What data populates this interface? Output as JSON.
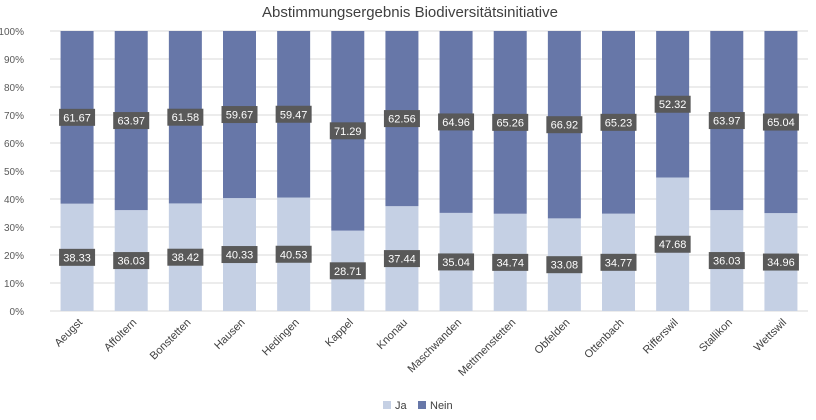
{
  "chart_data": {
    "type": "bar",
    "stacked": "100%",
    "title": "Abstimmungsergebnis Biodiversitätsinitiative",
    "categories": [
      "Aeugst",
      "Affoltern",
      "Bonstetten",
      "Hausen",
      "Hedingen",
      "Kappel",
      "Knonau",
      "Maschwanden",
      "Mettmenstetten",
      "Obfelden",
      "Ottenbach",
      "Rifferswil",
      "Stallikon",
      "Wettswil"
    ],
    "series": [
      {
        "name": "Ja",
        "color": "#c5d0e4",
        "values": [
          38.33,
          36.03,
          38.42,
          40.33,
          40.53,
          28.71,
          37.44,
          35.04,
          34.74,
          33.08,
          34.77,
          47.68,
          36.03,
          34.96
        ]
      },
      {
        "name": "Nein",
        "color": "#6777a8",
        "values": [
          61.67,
          63.97,
          61.58,
          59.67,
          59.47,
          71.29,
          62.56,
          64.96,
          65.26,
          66.92,
          65.23,
          52.32,
          63.97,
          65.04
        ]
      }
    ],
    "ylim": [
      0,
      100
    ],
    "yticks": [
      "0%",
      "10%",
      "20%",
      "30%",
      "40%",
      "50%",
      "60%",
      "70%",
      "80%",
      "90%",
      "100%"
    ],
    "grid": true,
    "legend": "bottom",
    "label_box_color": "#595959",
    "label_text_color": "#ffffff"
  }
}
